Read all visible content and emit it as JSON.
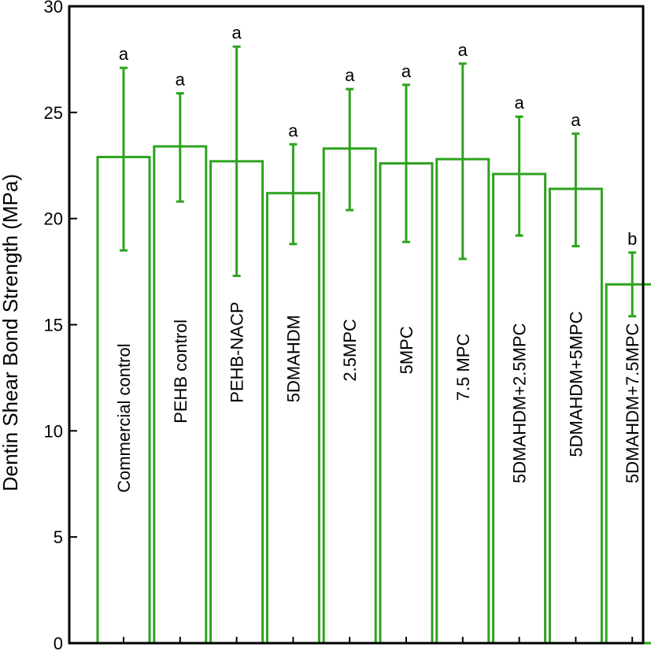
{
  "chart_data": {
    "type": "bar",
    "title": "",
    "xlabel": "",
    "ylabel": "Dentin Shear Bond Strength (MPa)",
    "ylim": [
      0,
      30
    ],
    "yticks": [
      0,
      5,
      10,
      15,
      20,
      25,
      30
    ],
    "grid": false,
    "legend": "none",
    "categories": [
      "Commercial control",
      "PEHB control",
      "PEHB-NACP",
      "5DMAHDM",
      "2.5MPC",
      "5MPC",
      "7.5 MPC",
      "5DMAHDM+2.5MPC",
      "5DMAHDM+5MPC",
      "5DMAHDM+7.5MPC"
    ],
    "values": [
      22.9,
      23.4,
      22.7,
      21.2,
      23.3,
      22.6,
      22.8,
      22.1,
      21.4,
      16.9
    ],
    "error_lower": [
      18.5,
      20.8,
      17.3,
      18.8,
      20.4,
      18.9,
      18.1,
      19.2,
      18.7,
      15.4
    ],
    "error_upper": [
      27.1,
      25.9,
      28.1,
      23.5,
      26.1,
      26.3,
      27.3,
      24.8,
      24.0,
      18.4
    ],
    "significance": [
      "a",
      "a",
      "a",
      "a",
      "a",
      "a",
      "a",
      "a",
      "a",
      "b"
    ],
    "colors": {
      "bar_stroke": "#2ea31f",
      "bar_fill": "#ffffff",
      "axis": "#000000"
    }
  }
}
